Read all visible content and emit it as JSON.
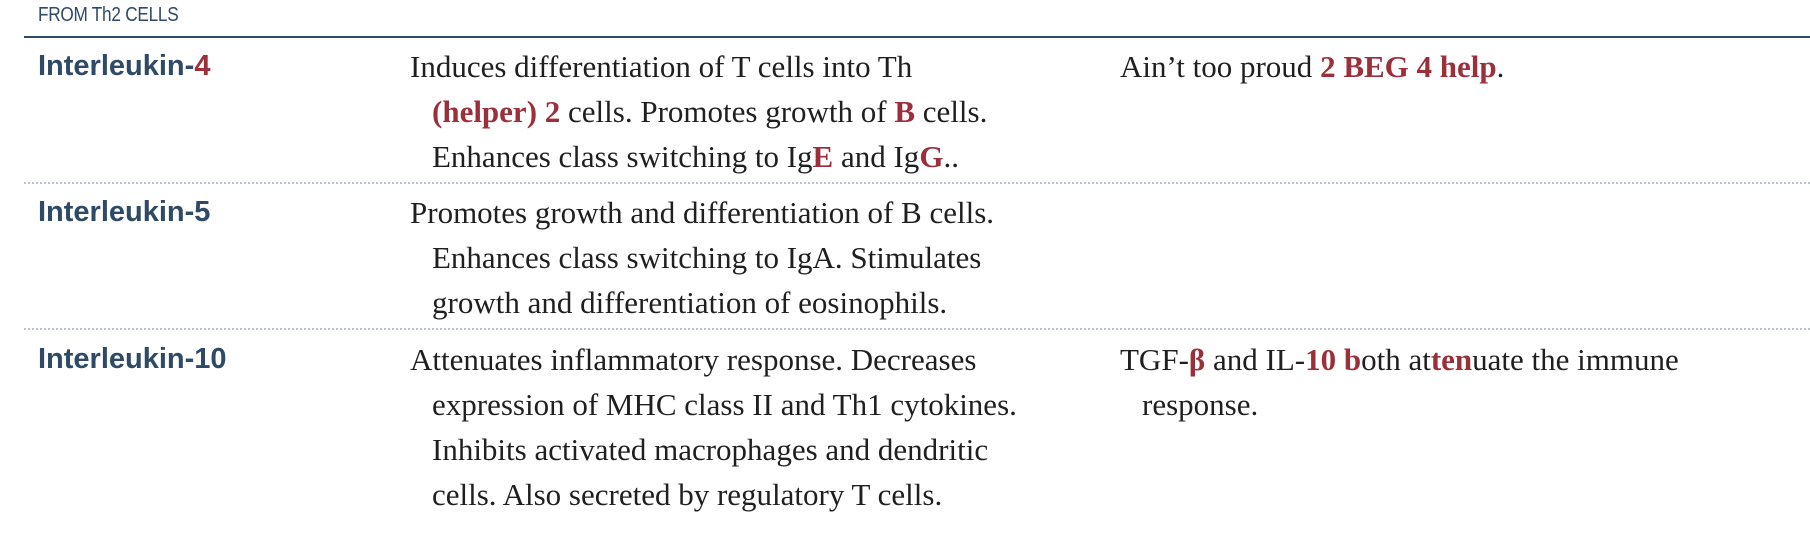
{
  "section_header": "FROM Th2 CELLS",
  "rows": [
    {
      "name_prefix": "Interleukin-",
      "name_suffix": "4",
      "desc": {
        "l1": "Induces differentiation of T cells into Th",
        "l2_a": "(helper) 2",
        "l2_b": " cells. Promotes growth of ",
        "l2_c": "B",
        "l2_d": " cells.",
        "l3_a": "Enhances class switching to Ig",
        "l3_b": "E",
        "l3_c": " and Ig",
        "l3_d": "G",
        "l3_e": ".."
      },
      "mnemonic": {
        "a": "Ain’t too proud ",
        "b": "2 BEG 4 help",
        "c": "."
      }
    },
    {
      "name": "Interleukin-5",
      "desc": {
        "l1": "Promotes growth and differentiation of B cells.",
        "l2": "Enhances class switching to IgA. Stimulates",
        "l3": "growth and differentiation of eosinophils."
      }
    },
    {
      "name": "Interleukin-10",
      "desc": {
        "l1": "Attenuates inflammatory response. Decreases",
        "l2": "expression of MHC class II and Th1 cytokines.",
        "l3": "Inhibits activated macrophages and dendritic",
        "l4": "cells. Also secreted by regulatory T cells."
      },
      "mnemonic": {
        "a": "TGF-",
        "b": "β",
        "c": " and IL-",
        "d": "10 b",
        "e": "oth at",
        "f": "ten",
        "g": "uate the immune",
        "h": "response."
      }
    }
  ]
}
